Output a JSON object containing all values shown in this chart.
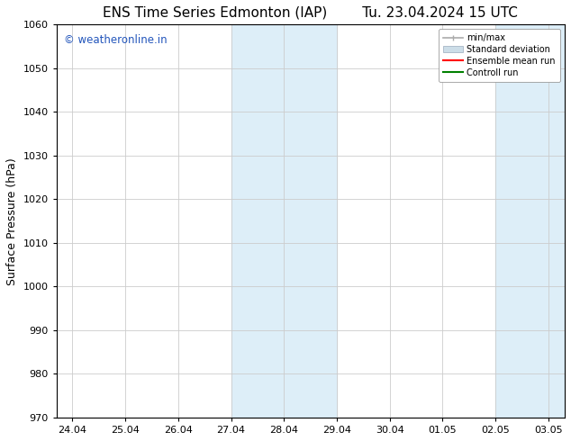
{
  "title_left": "ENS Time Series Edmonton (IAP)",
  "title_right": "Tu. 23.04.2024 15 UTC",
  "ylabel": "Surface Pressure (hPa)",
  "ylim": [
    970,
    1060
  ],
  "yticks": [
    970,
    980,
    990,
    1000,
    1010,
    1020,
    1030,
    1040,
    1050,
    1060
  ],
  "xtick_labels": [
    "24.04",
    "25.04",
    "26.04",
    "27.04",
    "28.04",
    "29.04",
    "30.04",
    "01.05",
    "02.05",
    "03.05"
  ],
  "shaded_regions": [
    {
      "xstart": 3,
      "xend": 5
    },
    {
      "xstart": 8,
      "xend": 9.3
    }
  ],
  "shaded_color": "#ddeef8",
  "watermark_text": "© weatheronline.in",
  "watermark_color": "#2255bb",
  "watermark_fontsize": 8.5,
  "legend_labels": [
    "min/max",
    "Standard deviation",
    "Ensemble mean run",
    "Controll run"
  ],
  "legend_line_color": "#aaaaaa",
  "legend_std_color": "#ccdde8",
  "legend_mean_color": "#ff0000",
  "legend_ctrl_color": "#008000",
  "background_color": "#ffffff",
  "axes_background": "#ffffff",
  "title_fontsize": 11,
  "axis_label_fontsize": 9,
  "tick_fontsize": 8
}
